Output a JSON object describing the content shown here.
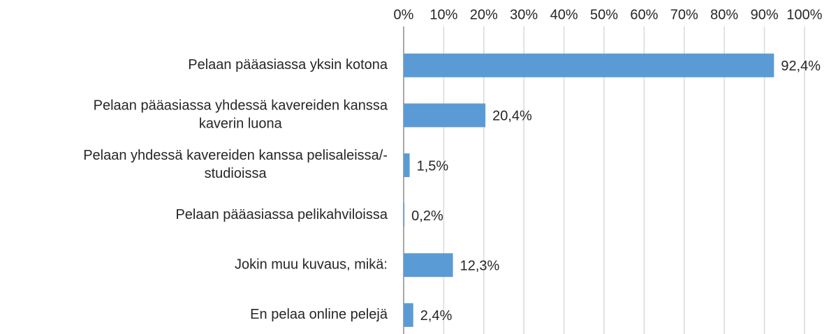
{
  "chart_data": {
    "type": "bar",
    "orientation": "horizontal",
    "categories": [
      "Pelaan pääasiassa yksin kotona",
      "Pelaan pääasiassa yhdessä kavereiden kanssa\nkaverin luona",
      "Pelaan yhdessä kavereiden kanssa pelisaleissa/-\nstudioissa",
      "Pelaan pääasiassa pelikahviloissa",
      "Jokin muu kuvaus, mikä:",
      "En pelaa online pelejä"
    ],
    "values": [
      92.4,
      20.4,
      1.5,
      0.2,
      12.3,
      2.4
    ],
    "value_labels": [
      "92,4%",
      "20,4%",
      "1,5%",
      "0,2%",
      "12,3%",
      "2,4%"
    ],
    "color": "#5b9bd5",
    "xlim": [
      0,
      100
    ],
    "xticks": [
      {
        "value": 0,
        "label": "0%"
      },
      {
        "value": 10,
        "label": "10%"
      },
      {
        "value": 20,
        "label": "20%"
      },
      {
        "value": 30,
        "label": "30%"
      },
      {
        "value": 40,
        "label": "40%"
      },
      {
        "value": 50,
        "label": "50%"
      },
      {
        "value": 60,
        "label": "60%"
      },
      {
        "value": 70,
        "label": "70%"
      },
      {
        "value": 80,
        "label": "80%"
      },
      {
        "value": 90,
        "label": "90%"
      },
      {
        "value": 100,
        "label": "100%"
      }
    ],
    "grid": true,
    "xaxis_position": "top"
  }
}
